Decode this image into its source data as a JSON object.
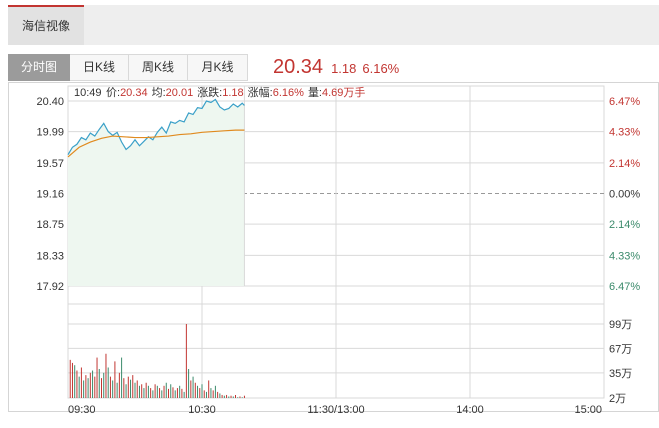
{
  "header": {
    "stock_tab_label": "海信视像"
  },
  "chart_tabs": [
    {
      "label": "分时图",
      "active": true
    },
    {
      "label": "日K线",
      "active": false
    },
    {
      "label": "周K线",
      "active": false
    },
    {
      "label": "月K线",
      "active": false
    }
  ],
  "quote": {
    "price": "20.34",
    "change": "1.18",
    "change_pct": "6.16%"
  },
  "info_line": {
    "time": "10:49",
    "price_label": "价:",
    "price": "20.34",
    "avg_label": "均:",
    "avg": "20.01",
    "change_label": "涨跌:",
    "change": "1.18",
    "pct_label": "涨幅:",
    "pct": "6.16%",
    "volume_label": "量:",
    "volume": "4.69万手"
  },
  "colors": {
    "up": "#c23531",
    "down": "#3b8a6b",
    "price_line": "#3aa0c8",
    "avg_line": "#e08a1e",
    "area_fill": "#eef7f0",
    "grid": "#d9d9d9",
    "base_line": "#999999"
  },
  "chart_data": {
    "type": "line",
    "price_axis": {
      "left_ticks": [
        "20.40",
        "19.99",
        "19.57",
        "19.16",
        "18.75",
        "18.33",
        "17.92"
      ],
      "right_ticks": [
        "6.47%",
        "4.33%",
        "2.14%",
        "0.00%",
        "2.14%",
        "4.33%",
        "6.47%"
      ],
      "ylim": [
        17.92,
        20.4
      ],
      "prev_close": 19.16
    },
    "volume_axis": {
      "ticks": [
        "99万",
        "67万",
        "35万",
        "2万"
      ],
      "ylim": [
        2,
        99
      ]
    },
    "x_ticks": [
      "09:30",
      "10:30",
      "11:30/13:00",
      "14:00",
      "15:00"
    ],
    "total_minutes": 240,
    "series": [
      {
        "type": "line",
        "minutes": [
          0,
          2,
          4,
          6,
          8,
          10,
          12,
          14,
          16,
          18,
          20,
          22,
          24,
          26,
          28,
          30,
          32,
          34,
          36,
          38,
          40,
          42,
          44,
          46,
          48,
          50,
          52,
          54,
          56,
          58,
          60,
          62,
          64,
          66,
          68,
          70,
          72,
          74,
          76,
          78,
          79
        ],
        "values": [
          19.68,
          19.78,
          19.82,
          19.91,
          19.88,
          19.97,
          19.93,
          20.02,
          20.1,
          19.99,
          19.94,
          19.98,
          19.85,
          19.75,
          19.8,
          19.88,
          19.8,
          19.86,
          19.92,
          19.88,
          19.98,
          20.05,
          19.97,
          20.12,
          20.1,
          20.14,
          20.12,
          20.24,
          20.22,
          20.31,
          20.3,
          20.4,
          20.38,
          20.42,
          20.32,
          20.28,
          20.3,
          20.36,
          20.32,
          20.37,
          20.34
        ]
      },
      {
        "type": "line",
        "minutes": [
          0,
          5,
          10,
          15,
          20,
          25,
          30,
          35,
          40,
          45,
          50,
          55,
          60,
          65,
          70,
          75,
          79
        ],
        "values": [
          19.65,
          19.78,
          19.85,
          19.9,
          19.93,
          19.92,
          19.91,
          19.91,
          19.92,
          19.93,
          19.95,
          19.96,
          19.98,
          19.99,
          20.0,
          20.01,
          20.01
        ]
      },
      {
        "type": "bar",
        "minutes": [
          1,
          2,
          3,
          4,
          5,
          6,
          7,
          8,
          9,
          10,
          11,
          12,
          13,
          14,
          15,
          16,
          17,
          18,
          19,
          20,
          21,
          22,
          23,
          24,
          25,
          26,
          27,
          28,
          29,
          30,
          31,
          32,
          33,
          34,
          35,
          36,
          37,
          38,
          39,
          40,
          41,
          42,
          43,
          44,
          45,
          46,
          47,
          48,
          49,
          50,
          51,
          52,
          53,
          54,
          55,
          56,
          57,
          58,
          59,
          60,
          61,
          62,
          63,
          64,
          65,
          66,
          67,
          68,
          69,
          70,
          71,
          72,
          73,
          74,
          75,
          76,
          77,
          78,
          79
        ],
        "values": [
          52,
          48,
          45,
          38,
          30,
          42,
          25,
          32,
          28,
          35,
          38,
          30,
          55,
          40,
          28,
          35,
          60,
          42,
          30,
          25,
          50,
          22,
          35,
          55,
          28,
          20,
          30,
          26,
          32,
          22,
          25,
          18,
          20,
          15,
          22,
          18,
          15,
          12,
          20,
          18,
          15,
          12,
          18,
          22,
          14,
          20,
          16,
          12,
          15,
          18,
          14,
          10,
          99,
          40,
          25,
          30,
          22,
          18,
          15,
          20,
          12,
          10,
          25,
          15,
          12,
          18,
          10,
          8,
          6,
          5,
          6,
          4,
          5,
          4,
          6,
          3,
          4,
          3,
          5
        ],
        "directions": [
          "up",
          "up",
          "down",
          "up",
          "down",
          "up",
          "down",
          "up",
          "down",
          "up",
          "down",
          "up",
          "up",
          "down",
          "up",
          "down",
          "up",
          "down",
          "up",
          "down",
          "up",
          "down",
          "up",
          "down",
          "up",
          "down",
          "up",
          "down",
          "up",
          "down",
          "up",
          "down",
          "up",
          "down",
          "up",
          "down",
          "up",
          "down",
          "up",
          "down",
          "up",
          "down",
          "up",
          "down",
          "up",
          "down",
          "up",
          "down",
          "up",
          "down",
          "up",
          "down",
          "up",
          "down",
          "up",
          "down",
          "up",
          "down",
          "up",
          "down",
          "up",
          "down",
          "up",
          "down",
          "up",
          "down",
          "up",
          "down",
          "up",
          "down",
          "up",
          "down",
          "up",
          "down",
          "up",
          "down",
          "up",
          "down",
          "up"
        ]
      }
    ]
  }
}
